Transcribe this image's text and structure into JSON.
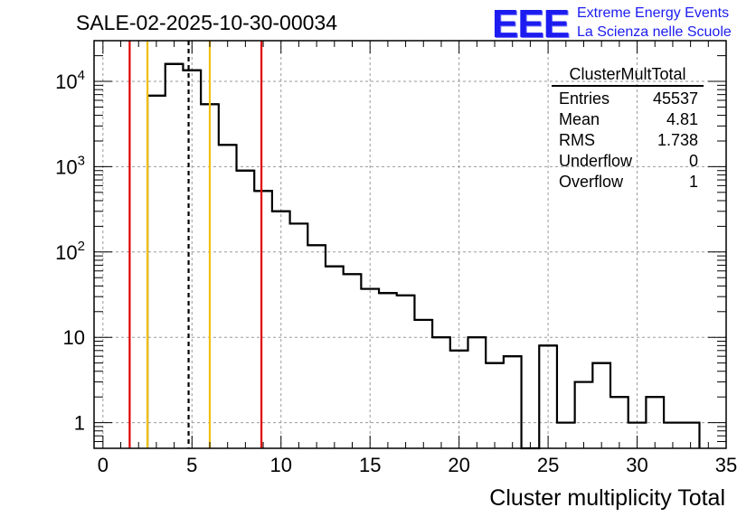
{
  "chart_data": {
    "type": "histogram",
    "title": "SALE-02-2025-10-30-00034",
    "xlabel": "Cluster multiplicity Total",
    "ylabel": "",
    "yscale": "log",
    "xlim": [
      -0.5,
      35
    ],
    "ylim": [
      0.5,
      30000
    ],
    "grid": true,
    "bin_width": 1,
    "bins": [
      {
        "x_low": 2.5,
        "x_high": 3.5,
        "count": 6800
      },
      {
        "x_low": 3.5,
        "x_high": 4.5,
        "count": 16000
      },
      {
        "x_low": 4.5,
        "x_high": 5.5,
        "count": 13500
      },
      {
        "x_low": 5.5,
        "x_high": 6.5,
        "count": 5400
      },
      {
        "x_low": 6.5,
        "x_high": 7.5,
        "count": 1800
      },
      {
        "x_low": 7.5,
        "x_high": 8.5,
        "count": 900
      },
      {
        "x_low": 8.5,
        "x_high": 9.5,
        "count": 520
      },
      {
        "x_low": 9.5,
        "x_high": 10.5,
        "count": 300
      },
      {
        "x_low": 10.5,
        "x_high": 11.5,
        "count": 215
      },
      {
        "x_low": 11.5,
        "x_high": 12.5,
        "count": 120
      },
      {
        "x_low": 12.5,
        "x_high": 13.5,
        "count": 68
      },
      {
        "x_low": 13.5,
        "x_high": 14.5,
        "count": 55
      },
      {
        "x_low": 14.5,
        "x_high": 15.5,
        "count": 37
      },
      {
        "x_low": 15.5,
        "x_high": 16.5,
        "count": 33
      },
      {
        "x_low": 16.5,
        "x_high": 17.5,
        "count": 31
      },
      {
        "x_low": 17.5,
        "x_high": 18.5,
        "count": 16
      },
      {
        "x_low": 18.5,
        "x_high": 19.5,
        "count": 10
      },
      {
        "x_low": 19.5,
        "x_high": 20.5,
        "count": 7
      },
      {
        "x_low": 20.5,
        "x_high": 21.5,
        "count": 10
      },
      {
        "x_low": 21.5,
        "x_high": 22.5,
        "count": 5
      },
      {
        "x_low": 22.5,
        "x_high": 23.5,
        "count": 6
      },
      {
        "x_low": 23.5,
        "x_high": 24.5,
        "count": 0
      },
      {
        "x_low": 24.5,
        "x_high": 25.5,
        "count": 8
      },
      {
        "x_low": 25.5,
        "x_high": 26.5,
        "count": 1
      },
      {
        "x_low": 26.5,
        "x_high": 27.5,
        "count": 3
      },
      {
        "x_low": 27.5,
        "x_high": 28.5,
        "count": 5
      },
      {
        "x_low": 28.5,
        "x_high": 29.5,
        "count": 2
      },
      {
        "x_low": 29.5,
        "x_high": 30.5,
        "count": 1
      },
      {
        "x_low": 30.5,
        "x_high": 31.5,
        "count": 2
      },
      {
        "x_low": 31.5,
        "x_high": 32.5,
        "count": 1
      },
      {
        "x_low": 32.5,
        "x_high": 33.5,
        "count": 1
      }
    ],
    "xticks": [
      {
        "value": 0,
        "label": "0"
      },
      {
        "value": 5,
        "label": "5"
      },
      {
        "value": 10,
        "label": "10"
      },
      {
        "value": 15,
        "label": "15"
      },
      {
        "value": 20,
        "label": "20"
      },
      {
        "value": 25,
        "label": "25"
      },
      {
        "value": 30,
        "label": "30"
      },
      {
        "value": 35,
        "label": "35"
      }
    ],
    "yticks": [
      {
        "value": 1,
        "label": "1",
        "exp": ""
      },
      {
        "value": 10,
        "label": "10",
        "exp": ""
      },
      {
        "value": 100,
        "label": "10",
        "exp": "2"
      },
      {
        "value": 1000,
        "label": "10",
        "exp": "3"
      },
      {
        "value": 10000,
        "label": "10",
        "exp": "4"
      }
    ],
    "vertical_lines": [
      {
        "name": "red-line-left",
        "x": 1.5,
        "color": "#e00000",
        "style": "solid"
      },
      {
        "name": "yellow-line-left",
        "x": 2.5,
        "color": "#f0c000",
        "style": "solid"
      },
      {
        "name": "mean-dashed-line",
        "x": 4.81,
        "color": "#000000",
        "style": "dashed"
      },
      {
        "name": "yellow-line-right",
        "x": 6.0,
        "color": "#f0c000",
        "style": "solid"
      },
      {
        "name": "red-line-right",
        "x": 8.9,
        "color": "#e00000",
        "style": "solid"
      }
    ]
  },
  "stats_box": {
    "title": "ClusterMultTotal",
    "rows": [
      {
        "label": "Entries",
        "value": "45537"
      },
      {
        "label": "Mean",
        "value": "4.81"
      },
      {
        "label": "RMS",
        "value": "1.738"
      },
      {
        "label": "Underflow",
        "value": "0"
      },
      {
        "label": "Overflow",
        "value": "1"
      }
    ]
  },
  "logo": {
    "mark": "EEE",
    "line1": "Extreme Energy Events",
    "line2": "La Scienza nelle Scuole",
    "color": "#1c1cf0"
  }
}
